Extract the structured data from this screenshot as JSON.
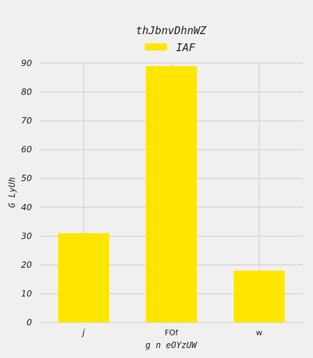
{
  "chart_data": {
    "type": "bar",
    "title": "thJbnvDhnWZ",
    "xlabel": "g n eOYzUW",
    "ylabel": "G LyUh",
    "categories": [
      "j",
      "FOf",
      "w"
    ],
    "series": [
      {
        "name": "IAF",
        "values": [
          31,
          89,
          18
        ]
      }
    ],
    "ylim": [
      0,
      90
    ],
    "yticks": [
      0,
      10,
      20,
      30,
      40,
      50,
      60,
      70,
      80,
      90
    ],
    "grid": true,
    "legend_position": "top-center",
    "colors": {
      "bar": "#ffe500",
      "background": "#f0f0f0",
      "grid": "#cbcbcb"
    }
  }
}
